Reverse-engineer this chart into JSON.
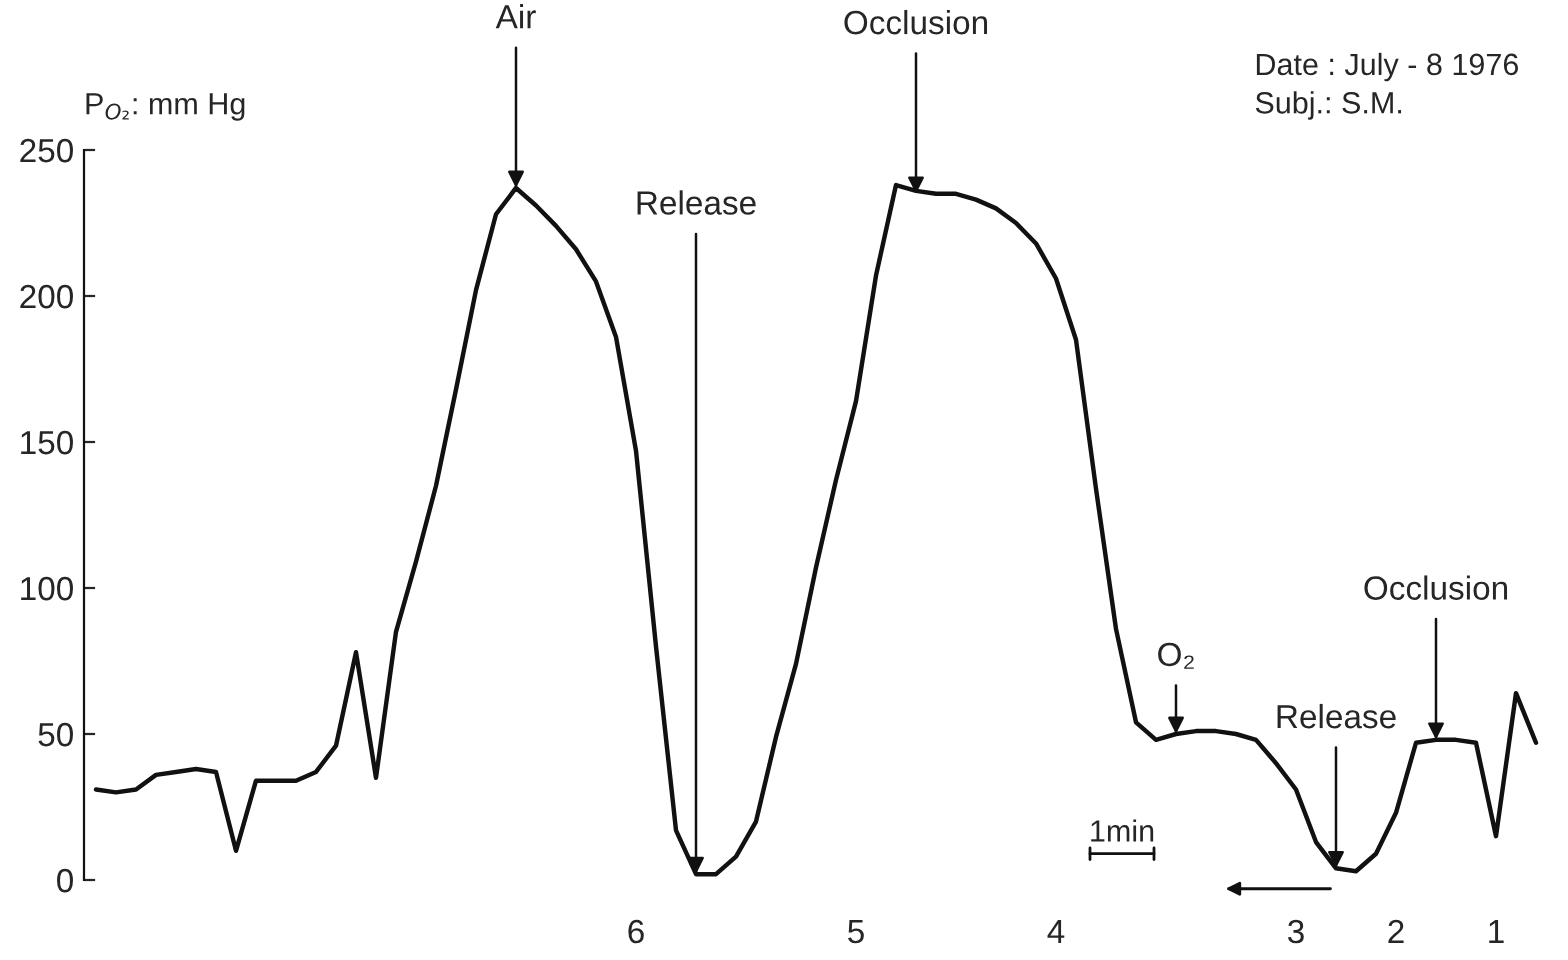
{
  "chart_data": {
    "type": "line",
    "ylabel": "P$_{O₂}$: mm Hg",
    "categories": [
      null,
      null,
      null,
      null,
      null,
      null,
      null,
      null,
      null,
      null,
      null,
      null,
      null,
      null,
      null,
      null,
      null,
      null,
      null,
      null,
      null,
      null,
      null,
      null,
      null,
      null,
      null,
      "6",
      null,
      null,
      null,
      null,
      null,
      null,
      null,
      null,
      null,
      null,
      "5",
      null,
      null,
      null,
      null,
      null,
      null,
      null,
      null,
      null,
      "4",
      null,
      null,
      null,
      null,
      null,
      null,
      null,
      null,
      null,
      null,
      null,
      "3",
      null,
      null,
      null,
      null,
      "2",
      null,
      null,
      null,
      null,
      "1",
      null,
      null
    ],
    "values": [
      31,
      30,
      31,
      36,
      37,
      38,
      37,
      10,
      34,
      34,
      34,
      37,
      46,
      78,
      35,
      85,
      109,
      135,
      168,
      202,
      228,
      237,
      231,
      224,
      216,
      205,
      186,
      147,
      80,
      17,
      2,
      2,
      8,
      20,
      49,
      74,
      107,
      137,
      164,
      207,
      238,
      236,
      235,
      235,
      233,
      230,
      225,
      218,
      206,
      185,
      134,
      86,
      54,
      48,
      50,
      51,
      51,
      50,
      48,
      40,
      31,
      13,
      4,
      3,
      9,
      23,
      47,
      48,
      48,
      47,
      15,
      64,
      47
    ],
    "color": "#111111",
    "ylim": [
      0,
      250
    ],
    "yticks": [
      0,
      50,
      100,
      150,
      200,
      250
    ],
    "annotations": [
      {
        "text": "Air",
        "y": 237
      },
      {
        "text": "Occlusion",
        "y": 235
      },
      {
        "text": "Release",
        "y": 2
      },
      {
        "text": "O₂",
        "y": 50
      },
      {
        "text": "Release",
        "y": 4
      },
      {
        "text": "Occlusion",
        "y": 48
      },
      "Date : July - 8 1976",
      "Subj.: S.M.",
      "1min"
    ]
  }
}
